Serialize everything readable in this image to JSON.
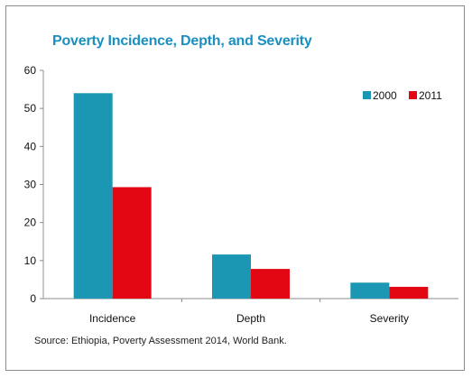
{
  "chart_data": {
    "type": "bar",
    "title": "Poverty Incidence, Depth, and Severity",
    "categories": [
      "Incidence",
      "Depth",
      "Severity"
    ],
    "series": [
      {
        "name": "2000",
        "values": [
          54.0,
          11.6,
          4.2
        ],
        "color": "#1b97b3"
      },
      {
        "name": "2011",
        "values": [
          29.3,
          7.8,
          3.1
        ],
        "color": "#e30613"
      }
    ],
    "ylim": [
      0,
      60
    ],
    "yticks": [
      0,
      10,
      20,
      30,
      40,
      50,
      60
    ],
    "xlabel": "",
    "ylabel": "",
    "grid": false,
    "legend": "top-right"
  },
  "source": "Source: Ethiopia, Poverty Assessment 2014, World Bank."
}
